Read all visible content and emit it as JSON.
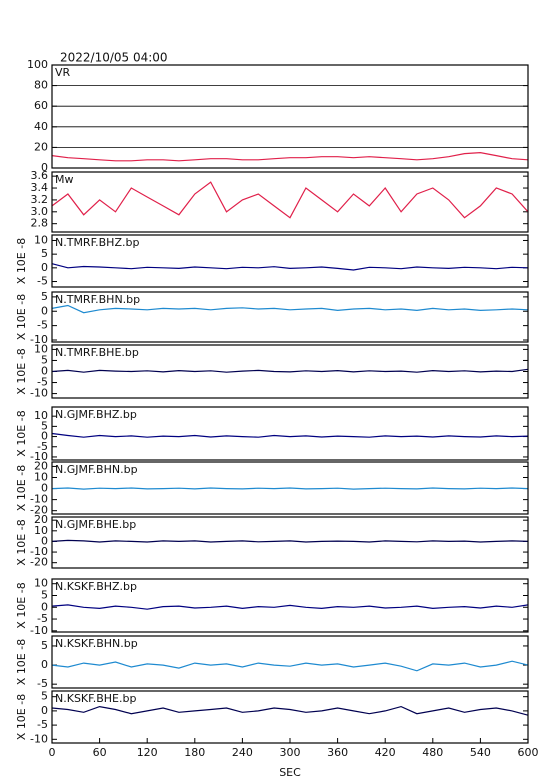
{
  "title": "2022/10/05 04:00",
  "chart_data": [
    {
      "type": "line",
      "title": "VR",
      "x": [
        0,
        20,
        40,
        60,
        80,
        100,
        120,
        140,
        160,
        180,
        200,
        220,
        240,
        260,
        280,
        300,
        320,
        340,
        360,
        380,
        400,
        420,
        440,
        460,
        480,
        500,
        520,
        540,
        560,
        580,
        600
      ],
      "xlim": [
        0,
        600
      ],
      "ylim": [
        0,
        100
      ],
      "yticks": [
        0,
        20,
        40,
        60,
        80,
        100
      ],
      "grid": true,
      "color": "#e0204a",
      "values": [
        12,
        10,
        9,
        8,
        7,
        7,
        8,
        8,
        7,
        8,
        9,
        9,
        8,
        8,
        9,
        10,
        10,
        11,
        11,
        10,
        11,
        10,
        9,
        8,
        9,
        11,
        14,
        15,
        12,
        9,
        8
      ]
    },
    {
      "type": "line",
      "title": "Mw",
      "x": [
        0,
        20,
        40,
        60,
        80,
        100,
        120,
        140,
        160,
        180,
        200,
        220,
        240,
        260,
        280,
        300,
        320,
        340,
        360,
        380,
        400,
        420,
        440,
        460,
        480,
        500,
        520,
        540,
        560,
        580,
        600
      ],
      "xlim": [
        0,
        600
      ],
      "ylim": [
        2.66,
        3.67
      ],
      "yticks": [
        2.8,
        {
          "value": 3,
          "label": "3.0"
        },
        3.2,
        3.4,
        3.6
      ],
      "color": "#e0204a",
      "values": [
        3.1,
        3.3,
        2.95,
        3.2,
        3.0,
        3.4,
        3.25,
        3.1,
        2.95,
        3.3,
        3.5,
        3.0,
        3.2,
        3.3,
        3.1,
        2.9,
        3.4,
        3.2,
        3.0,
        3.3,
        3.1,
        3.4,
        3.0,
        3.3,
        3.4,
        3.2,
        2.9,
        3.1,
        3.4,
        3.3,
        3.0
      ]
    },
    {
      "type": "line",
      "title": "N.TMRF.BHZ.bp",
      "ylabel": "X 10E -8",
      "x": [
        0,
        20,
        40,
        60,
        80,
        100,
        120,
        140,
        160,
        180,
        200,
        220,
        240,
        260,
        280,
        300,
        320,
        340,
        360,
        380,
        400,
        420,
        440,
        460,
        480,
        500,
        520,
        540,
        560,
        580,
        600
      ],
      "xlim": [
        0,
        600
      ],
      "ylim": [
        -7,
        12
      ],
      "yticks": [
        -5,
        0,
        5,
        10
      ],
      "color": "#000080",
      "values": [
        1.5,
        0,
        0.5,
        0.3,
        0,
        -0.3,
        0.2,
        0,
        -0.2,
        0.3,
        0,
        -0.3,
        0.2,
        0,
        0.4,
        -0.2,
        0,
        0.3,
        -0.2,
        -0.8,
        0.2,
        0,
        -0.3,
        0.3,
        0,
        -0.2,
        0.2,
        0,
        -0.3,
        0.2,
        0
      ]
    },
    {
      "type": "line",
      "title": "N.TMRF.BHN.bp",
      "ylabel": "X 10E -8",
      "x": [
        0,
        20,
        40,
        60,
        80,
        100,
        120,
        140,
        160,
        180,
        200,
        220,
        240,
        260,
        280,
        300,
        320,
        340,
        360,
        380,
        400,
        420,
        440,
        460,
        480,
        500,
        520,
        540,
        560,
        580,
        600
      ],
      "xlim": [
        0,
        600
      ],
      "ylim": [
        -10.7,
        6.7
      ],
      "yticks": [
        -10,
        -5,
        0,
        5
      ],
      "color": "#1e8ad0",
      "values": [
        1,
        2,
        -0.5,
        0.5,
        1,
        0.8,
        0.5,
        1,
        0.8,
        1,
        0.5,
        1,
        1.2,
        0.8,
        1,
        0.5,
        0.8,
        1,
        0.3,
        0.8,
        1,
        0.5,
        0.8,
        0.3,
        1,
        0.5,
        0.8,
        0.3,
        0.5,
        0.8,
        0.5
      ]
    },
    {
      "type": "line",
      "title": "N.TMRF.BHE.bp",
      "ylabel": "X 10E -8",
      "x": [
        0,
        20,
        40,
        60,
        80,
        100,
        120,
        140,
        160,
        180,
        200,
        220,
        240,
        260,
        280,
        300,
        320,
        340,
        360,
        380,
        400,
        420,
        440,
        460,
        480,
        500,
        520,
        540,
        560,
        580,
        600
      ],
      "xlim": [
        0,
        600
      ],
      "ylim": [
        -12,
        12
      ],
      "yticks": [
        -10,
        -5,
        0,
        5,
        10
      ],
      "color": "#000050",
      "values": [
        0,
        0.5,
        -0.3,
        0.5,
        0.2,
        0,
        0.3,
        -0.2,
        0.4,
        0,
        0.3,
        -0.3,
        0.2,
        0.5,
        0,
        -0.2,
        0.3,
        0,
        0.4,
        -0.2,
        0.3,
        0,
        0.2,
        -0.3,
        0.4,
        0,
        0.3,
        -0.2,
        0.2,
        0,
        1
      ]
    },
    {
      "type": "line",
      "title": "N.GJMF.BHZ.bp",
      "ylabel": "X 10E -8",
      "x": [
        0,
        20,
        40,
        60,
        80,
        100,
        120,
        140,
        160,
        180,
        200,
        220,
        240,
        260,
        280,
        300,
        320,
        340,
        360,
        380,
        400,
        420,
        440,
        460,
        480,
        500,
        520,
        540,
        560,
        580,
        600
      ],
      "xlim": [
        0,
        600
      ],
      "ylim": [
        -11.5,
        14.5
      ],
      "yticks": [
        -10,
        -5,
        0,
        5,
        10
      ],
      "color": "#000080",
      "values": [
        1.5,
        0.5,
        -0.3,
        0.5,
        0,
        0.3,
        -0.3,
        0.2,
        0,
        0.5,
        -0.2,
        0.3,
        0,
        -0.3,
        0.5,
        0,
        0.3,
        -0.2,
        0.2,
        0,
        -0.3,
        0.3,
        0,
        0.2,
        -0.2,
        0.3,
        0,
        -0.2,
        0.3,
        0,
        0.2
      ]
    },
    {
      "type": "line",
      "title": "N.GJMF.BHN.bp",
      "ylabel": "X 10E -8",
      "x": [
        0,
        20,
        40,
        60,
        80,
        100,
        120,
        140,
        160,
        180,
        200,
        220,
        240,
        260,
        280,
        300,
        320,
        340,
        360,
        380,
        400,
        420,
        440,
        460,
        480,
        500,
        520,
        540,
        560,
        580,
        600
      ],
      "xlim": [
        0,
        600
      ],
      "ylim": [
        -23,
        24
      ],
      "yticks": [
        -20,
        -10,
        0,
        10,
        20
      ],
      "color": "#1e8ad0",
      "values": [
        0,
        0.5,
        -0.5,
        0.3,
        0,
        0.5,
        -0.3,
        0,
        0.3,
        -0.3,
        0.5,
        0,
        -0.3,
        0.3,
        0,
        0.5,
        -0.3,
        0,
        0.3,
        -0.5,
        0,
        0.3,
        0,
        -0.3,
        0.5,
        0,
        -0.3,
        0.3,
        0,
        0.5,
        0
      ]
    },
    {
      "type": "line",
      "title": "N.GJMF.BHE.bp",
      "ylabel": "X 10E -8",
      "x": [
        0,
        20,
        40,
        60,
        80,
        100,
        120,
        140,
        160,
        180,
        200,
        220,
        240,
        260,
        280,
        300,
        320,
        340,
        360,
        380,
        400,
        420,
        440,
        460,
        480,
        500,
        520,
        540,
        560,
        580,
        600
      ],
      "xlim": [
        0,
        600
      ],
      "ylim": [
        -25,
        23
      ],
      "yticks": [
        -20,
        -10,
        0,
        10,
        20
      ],
      "color": "#000050",
      "values": [
        0,
        1,
        0.5,
        -0.5,
        0.5,
        0,
        -0.5,
        0.5,
        0,
        0.5,
        -0.5,
        0,
        0.5,
        -0.3,
        0,
        0.5,
        -0.5,
        0,
        0.3,
        0,
        -0.5,
        0.5,
        0,
        -0.3,
        0.5,
        0,
        0.3,
        -0.5,
        0,
        0.5,
        0
      ]
    },
    {
      "type": "line",
      "title": "N.KSKF.BHZ.bp",
      "ylabel": "X 10E -8",
      "x": [
        0,
        20,
        40,
        60,
        80,
        100,
        120,
        140,
        160,
        180,
        200,
        220,
        240,
        260,
        280,
        300,
        320,
        340,
        360,
        380,
        400,
        420,
        440,
        460,
        480,
        500,
        520,
        540,
        560,
        580,
        600
      ],
      "xlim": [
        0,
        600
      ],
      "ylim": [
        -10.5,
        12
      ],
      "yticks": [
        -10,
        -5,
        0,
        5,
        10
      ],
      "color": "#000080",
      "values": [
        0.5,
        1,
        0,
        -0.5,
        0.5,
        0,
        -0.8,
        0.3,
        0.5,
        -0.3,
        0,
        0.5,
        -0.5,
        0.3,
        0,
        0.8,
        0,
        -0.5,
        0.3,
        0,
        0.5,
        -0.3,
        0,
        0.5,
        -0.5,
        0,
        0.3,
        -0.3,
        0.5,
        0,
        1
      ]
    },
    {
      "type": "line",
      "title": "N.KSKF.BHN.bp",
      "ylabel": "X 10E -8",
      "x": [
        0,
        20,
        40,
        60,
        80,
        100,
        120,
        140,
        160,
        180,
        200,
        220,
        240,
        260,
        280,
        300,
        320,
        340,
        360,
        380,
        400,
        420,
        440,
        460,
        480,
        500,
        520,
        540,
        560,
        580,
        600
      ],
      "xlim": [
        0,
        600
      ],
      "ylim": [
        -6,
        7.6
      ],
      "yticks": [
        -5,
        0,
        5
      ],
      "color": "#1e8ad0",
      "values": [
        0,
        -0.5,
        0.5,
        0,
        0.8,
        -0.5,
        0.3,
        0,
        -0.8,
        0.5,
        0,
        0.3,
        -0.5,
        0.5,
        0,
        -0.3,
        0.5,
        0,
        0.3,
        -0.5,
        0,
        0.5,
        -0.3,
        -1.5,
        0.3,
        0,
        0.5,
        -0.5,
        0,
        1,
        0
      ]
    },
    {
      "type": "line",
      "title": "N.KSKF.BHE.bp",
      "ylabel": "X 10E -8",
      "xlabel": "SEC",
      "x": [
        0,
        20,
        40,
        60,
        80,
        100,
        120,
        140,
        160,
        180,
        200,
        220,
        240,
        260,
        280,
        300,
        320,
        340,
        360,
        380,
        400,
        420,
        440,
        460,
        480,
        500,
        520,
        540,
        560,
        580,
        600
      ],
      "xlim": [
        0,
        600
      ],
      "xticks": [
        0,
        60,
        120,
        180,
        240,
        300,
        360,
        420,
        480,
        540,
        600
      ],
      "ylim": [
        -11.3,
        7
      ],
      "yticks": [
        -10,
        -5,
        0,
        5
      ],
      "color": "#000050",
      "values": [
        1,
        0.5,
        -0.5,
        1.5,
        0.5,
        -1,
        0,
        1,
        -0.5,
        0,
        0.5,
        1,
        -0.5,
        0,
        1,
        0.5,
        -0.5,
        0,
        1,
        0,
        -1,
        0,
        1.5,
        -1,
        0,
        1,
        -0.5,
        0.5,
        1,
        0,
        -1.5
      ]
    }
  ]
}
